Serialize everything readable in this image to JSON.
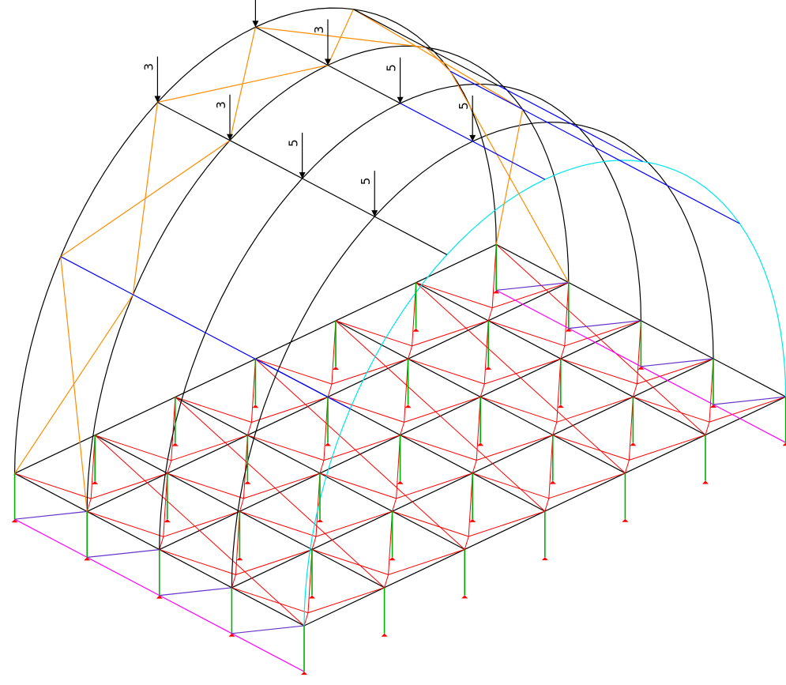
{
  "colors": {
    "background": "#ffffff",
    "black_members": "#000000",
    "red_bracing": "#ff0000",
    "green_columns": "#00b000",
    "magenta_edges": "#ff00ff",
    "purple_braces": "#6633cc",
    "blue_purlins": "#0000ff",
    "orange_bracing": "#ff8c00",
    "cyan_arch": "#00e5ee",
    "support_marker": "#ff0000"
  },
  "loads": [
    {
      "label": "3",
      "node": "arch0-top"
    },
    {
      "label": "3",
      "node": "arch1-top"
    },
    {
      "label": "5",
      "node": "arch2-top"
    },
    {
      "label": "5",
      "node": "arch3-top"
    },
    {
      "label": "3",
      "node": "arch0-upper"
    },
    {
      "label": "3",
      "node": "arch1-upper"
    },
    {
      "label": "5",
      "node": "arch2-upper"
    },
    {
      "label": "5",
      "node": "arch3-upper"
    }
  ]
}
